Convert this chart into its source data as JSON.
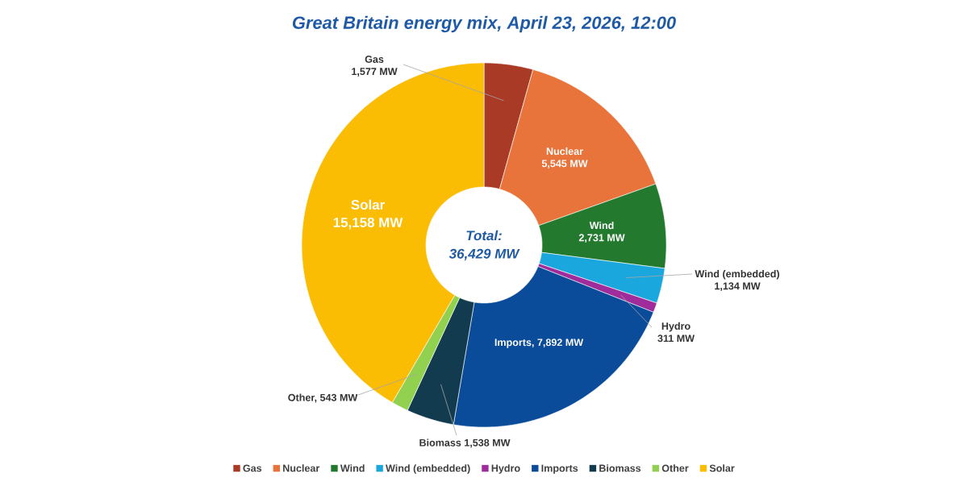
{
  "chart_data": {
    "type": "donut",
    "title": "Great Britain energy mix, April 23, 2026, 12:00",
    "categories": [
      "Gas",
      "Nuclear",
      "Wind",
      "Wind (embedded)",
      "Hydro",
      "Imports",
      "Biomass",
      "Other",
      "Solar"
    ],
    "values": [
      1577,
      5545,
      2731,
      1134,
      311,
      7892,
      1538,
      543,
      15158
    ],
    "colors": [
      "#a93a26",
      "#e8743b",
      "#237a2f",
      "#1aa7dd",
      "#a02b9a",
      "#0a4c9a",
      "#123b4f",
      "#92d050",
      "#fbbc04"
    ],
    "value_labels": [
      "1,577 MW",
      "5,545 MW",
      "2,731 MW",
      "1,134 MW",
      "311 MW",
      "Imports, 7,892 MW",
      "Biomass 1,538 MW",
      "Other, 543 MW",
      "15,158 MW"
    ],
    "annotations": [
      "Total:",
      "36,429 MW"
    ],
    "legend": "bottom"
  }
}
